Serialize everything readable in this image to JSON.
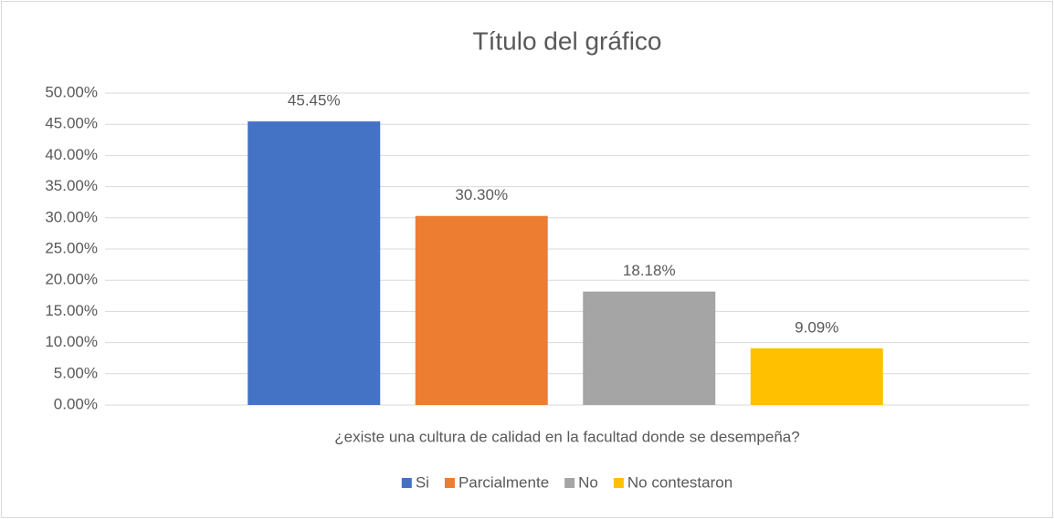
{
  "chart_data": {
    "type": "bar",
    "title": "Título del gráfico",
    "categories": [
      "¿existe una cultura de calidad en la facultad donde se desempeña?"
    ],
    "series": [
      {
        "name": "Si",
        "color": "#4472c4",
        "values": [
          45.45
        ],
        "value_labels": [
          "45.45%"
        ]
      },
      {
        "name": "Parcialmente",
        "color": "#ed7d31",
        "values": [
          30.3
        ],
        "value_labels": [
          "30.30%"
        ]
      },
      {
        "name": "No",
        "color": "#a5a5a5",
        "values": [
          18.18
        ],
        "value_labels": [
          "18.18%"
        ]
      },
      {
        "name": "No contestaron",
        "color": "#ffc000",
        "values": [
          9.09
        ],
        "value_labels": [
          "9.09%"
        ]
      }
    ],
    "ylim": [
      0,
      50
    ],
    "yticks": [
      {
        "value": 0,
        "label": "0.00%"
      },
      {
        "value": 5,
        "label": "5.00%"
      },
      {
        "value": 10,
        "label": "10.00%"
      },
      {
        "value": 15,
        "label": "15.00%"
      },
      {
        "value": 20,
        "label": "20.00%"
      },
      {
        "value": 25,
        "label": "25.00%"
      },
      {
        "value": 30,
        "label": "30.00%"
      },
      {
        "value": 35,
        "label": "35.00%"
      },
      {
        "value": 40,
        "label": "40.00%"
      },
      {
        "value": 45,
        "label": "45.00%"
      },
      {
        "value": 50,
        "label": "50.00%"
      }
    ],
    "grid": true,
    "legend": "bottom"
  }
}
